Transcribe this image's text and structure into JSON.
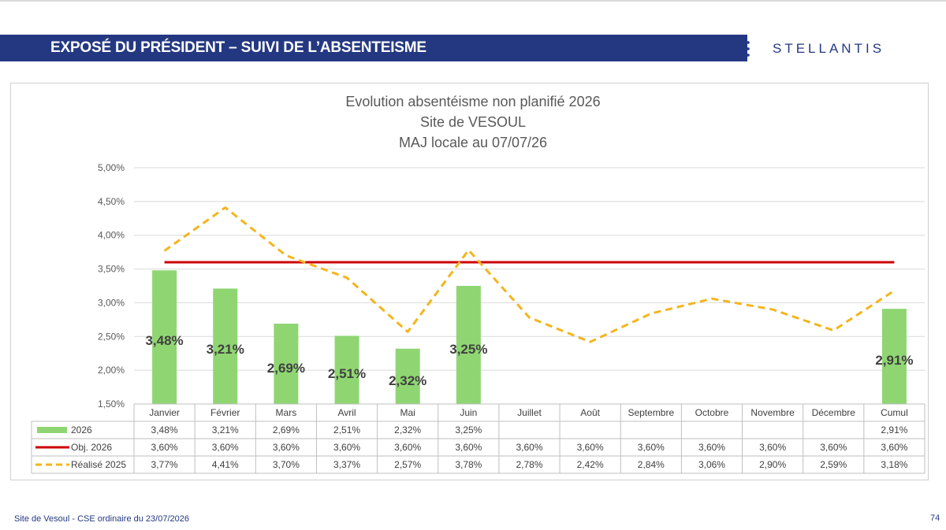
{
  "header": {
    "title": "EXPOSÉ DU PRÉSIDENT – SUIVI DE L’ABSENTEISME",
    "logo_text": "STELLANTIS",
    "band_color": "#243882"
  },
  "footer": {
    "text": "Site de Vesoul - CSE ordinaire du 23/07/2026",
    "page_number": "74"
  },
  "chart_data": {
    "type": "bar",
    "title": "Evolution absentéisme non planifié 2026",
    "subtitle": "Site de VESOUL",
    "subtitle2": "MAJ locale au 07/07/26",
    "categories": [
      "Janvier",
      "Février",
      "Mars",
      "Avril",
      "Mai",
      "Juin",
      "Juillet",
      "Août",
      "Septembre",
      "Octobre",
      "Novembre",
      "Décembre",
      "Cumul"
    ],
    "ylim": [
      1.5,
      5.0
    ],
    "yticks": [
      "1,50%",
      "2,00%",
      "2,50%",
      "3,00%",
      "3,50%",
      "4,00%",
      "4,50%",
      "5,00%"
    ],
    "grid": true,
    "series": [
      {
        "name": "2026",
        "kind": "bar",
        "color": "#8fd672",
        "values": [
          3.48,
          3.21,
          2.69,
          2.51,
          2.32,
          3.25,
          null,
          null,
          null,
          null,
          null,
          null,
          2.91
        ],
        "labels": [
          "3,48%",
          "3,21%",
          "2,69%",
          "2,51%",
          "2,32%",
          "3,25%",
          "",
          "",
          "",
          "",
          "",
          "",
          "2,91%"
        ]
      },
      {
        "name": "Obj. 2026",
        "kind": "line",
        "color": "#cc0000",
        "values": [
          3.6,
          3.6,
          3.6,
          3.6,
          3.6,
          3.6,
          3.6,
          3.6,
          3.6,
          3.6,
          3.6,
          3.6,
          3.6
        ],
        "labels": [
          "3,60%",
          "3,60%",
          "3,60%",
          "3,60%",
          "3,60%",
          "3,60%",
          "3,60%",
          "3,60%",
          "3,60%",
          "3,60%",
          "3,60%",
          "3,60%",
          "3,60%"
        ]
      },
      {
        "name": "Réalisé 2025",
        "kind": "dashed-line",
        "color": "#f4b51c",
        "values": [
          3.77,
          4.41,
          3.7,
          3.37,
          2.57,
          3.78,
          2.78,
          2.42,
          2.84,
          3.06,
          2.9,
          2.59,
          3.18
        ],
        "labels": [
          "3,77%",
          "4,41%",
          "3,70%",
          "3,37%",
          "2,57%",
          "3,78%",
          "2,78%",
          "2,42%",
          "2,84%",
          "3,06%",
          "2,90%",
          "2,59%",
          "3,18%"
        ]
      }
    ]
  }
}
